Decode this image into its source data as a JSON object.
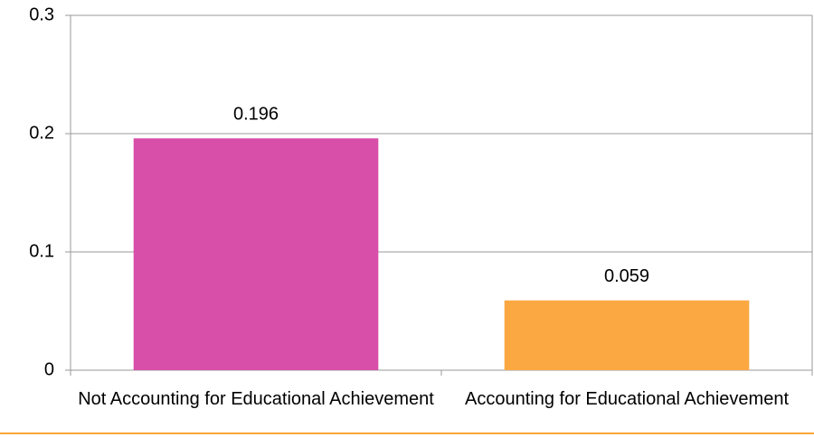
{
  "chart_data": {
    "type": "bar",
    "categories": [
      "Not Accounting for Educational Achievement",
      "Accounting for Educational Achievement"
    ],
    "values": [
      0.196,
      0.059
    ],
    "colors": [
      "#d84faa",
      "#fba843"
    ],
    "ylim": [
      0,
      0.3
    ],
    "yticks": [
      0,
      0.1,
      0.2,
      0.3
    ],
    "grid": true,
    "data_labels": true
  }
}
